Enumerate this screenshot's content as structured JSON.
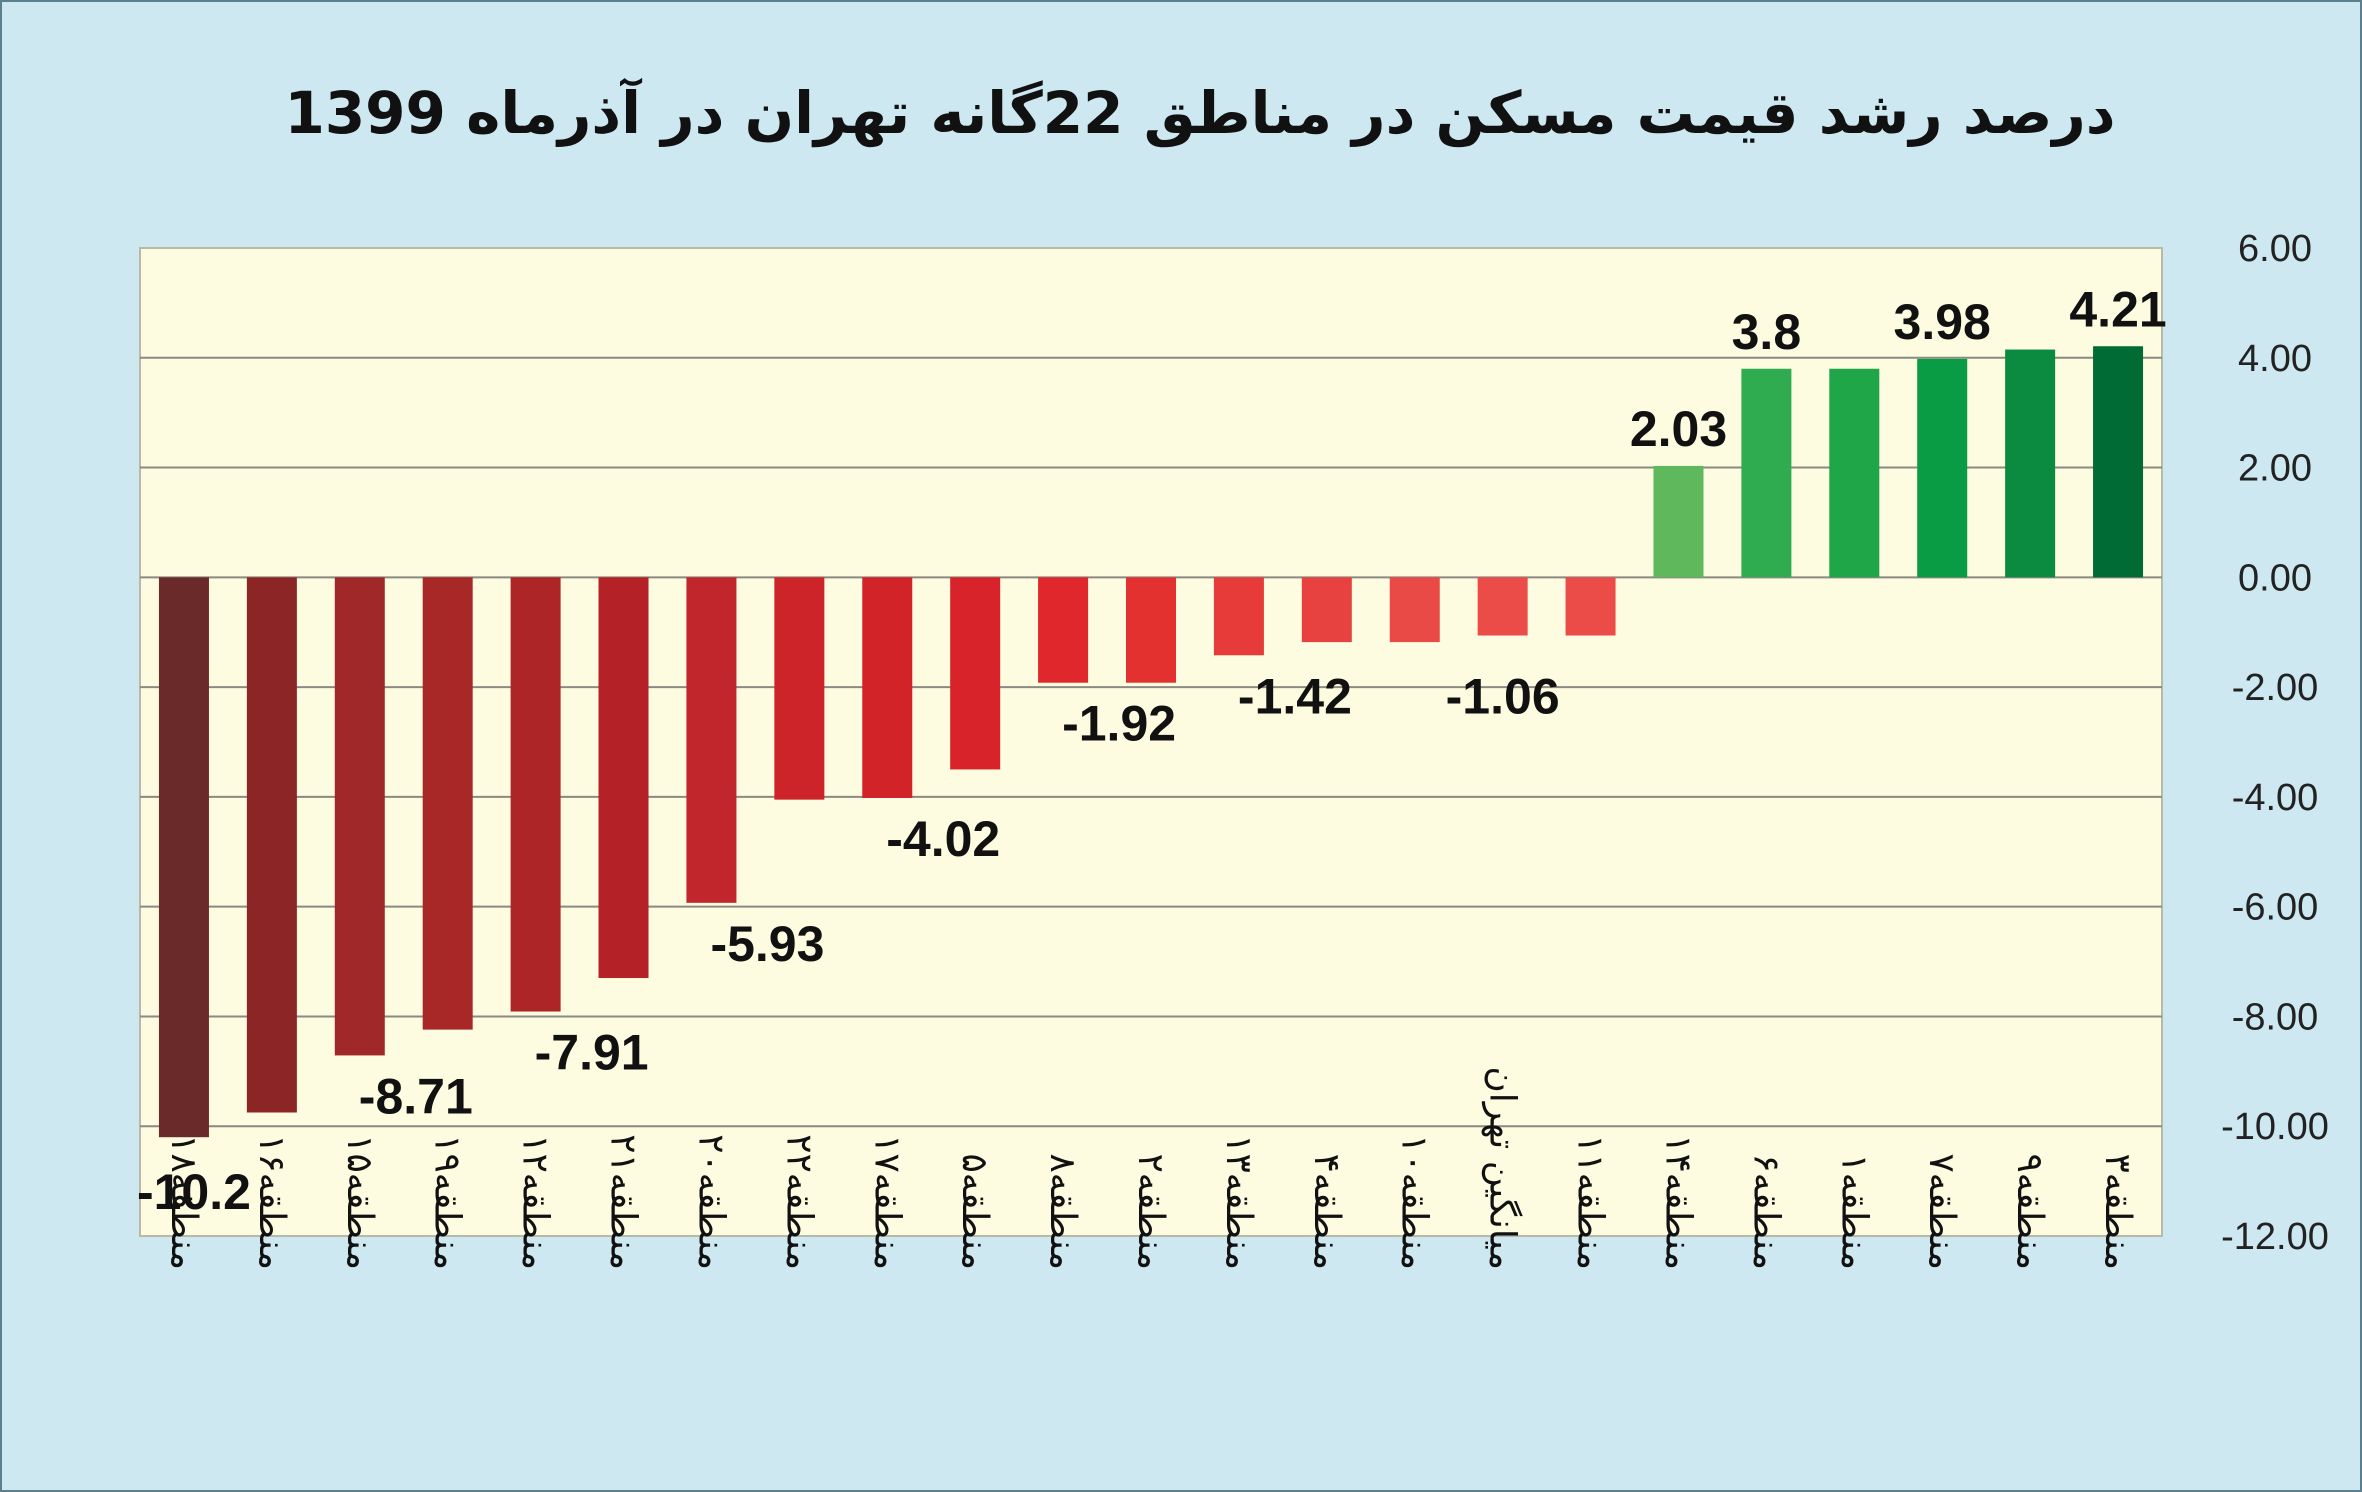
{
  "chart_data": {
    "type": "bar",
    "title": "درصد رشد قیمت مسکن در مناطق 22گانه تهران در آذرماه 1399",
    "xlabel": "",
    "ylabel": "",
    "ylim": [
      -12,
      6
    ],
    "yticks": [
      "6.00",
      "4.00",
      "2.00",
      "0.00",
      "-2.00",
      "-4.00",
      "-6.00",
      "-8.00",
      "-10.00",
      "-12.00"
    ],
    "grid": true,
    "categories": [
      "منطقه۱۸",
      "منطقه۱۶",
      "منطقه۱۵",
      "منطقه۱۹",
      "منطقه۱۲",
      "منطقه۲۱",
      "منطقه۲۰",
      "منطقه۲۲",
      "منطقه۱۷",
      "منطقه۵",
      "منطقه۸",
      "منطقه۲",
      "منطقه۱۳",
      "منطقه۴",
      "منطقه۱۰",
      "میانگین تهران",
      "منطقه۱۱",
      "منطقه۱۴",
      "منطقه۶",
      "منطقه۱",
      "منطقه۷",
      "منطقه۹",
      "منطقه۳"
    ],
    "values": [
      -10.2,
      -9.75,
      -8.71,
      -8.24,
      -7.91,
      -7.3,
      -5.93,
      -4.05,
      -4.02,
      -3.5,
      -1.92,
      -1.92,
      -1.42,
      -1.18,
      -1.18,
      -1.06,
      -1.06,
      2.03,
      3.8,
      3.8,
      3.98,
      4.15,
      4.21
    ],
    "data_labels": [
      "-10.2",
      "",
      "-8.71",
      "",
      "-7.91",
      "",
      "-5.93",
      "",
      "-4.02",
      "",
      "-1.92",
      "",
      "-1.42",
      "",
      "",
      "-1.06",
      "",
      "2.03",
      "3.8",
      "",
      "3.98",
      "",
      "4.21"
    ],
    "colors": [
      "#6b2a2a",
      "#8c2525",
      "#a02828",
      "#a82828",
      "#ad2527",
      "#b42126",
      "#c0262b",
      "#cc2428",
      "#d22328",
      "#d8232a",
      "#e0282c",
      "#e3312f",
      "#e63b38",
      "#e84240",
      "#ea4a45",
      "#ec4c48",
      "#ec4c48",
      "#5fb85c",
      "#2eac4f",
      "#1fa648",
      "#0a9b45",
      "#0a8b40",
      "#006b35"
    ],
    "label_colors": {
      "default": "#111111",
      "average": "#e8302f"
    },
    "average_category": "میانگین تهران",
    "plot_background": "#fdfbe0",
    "page_background": "#cde8f0"
  }
}
